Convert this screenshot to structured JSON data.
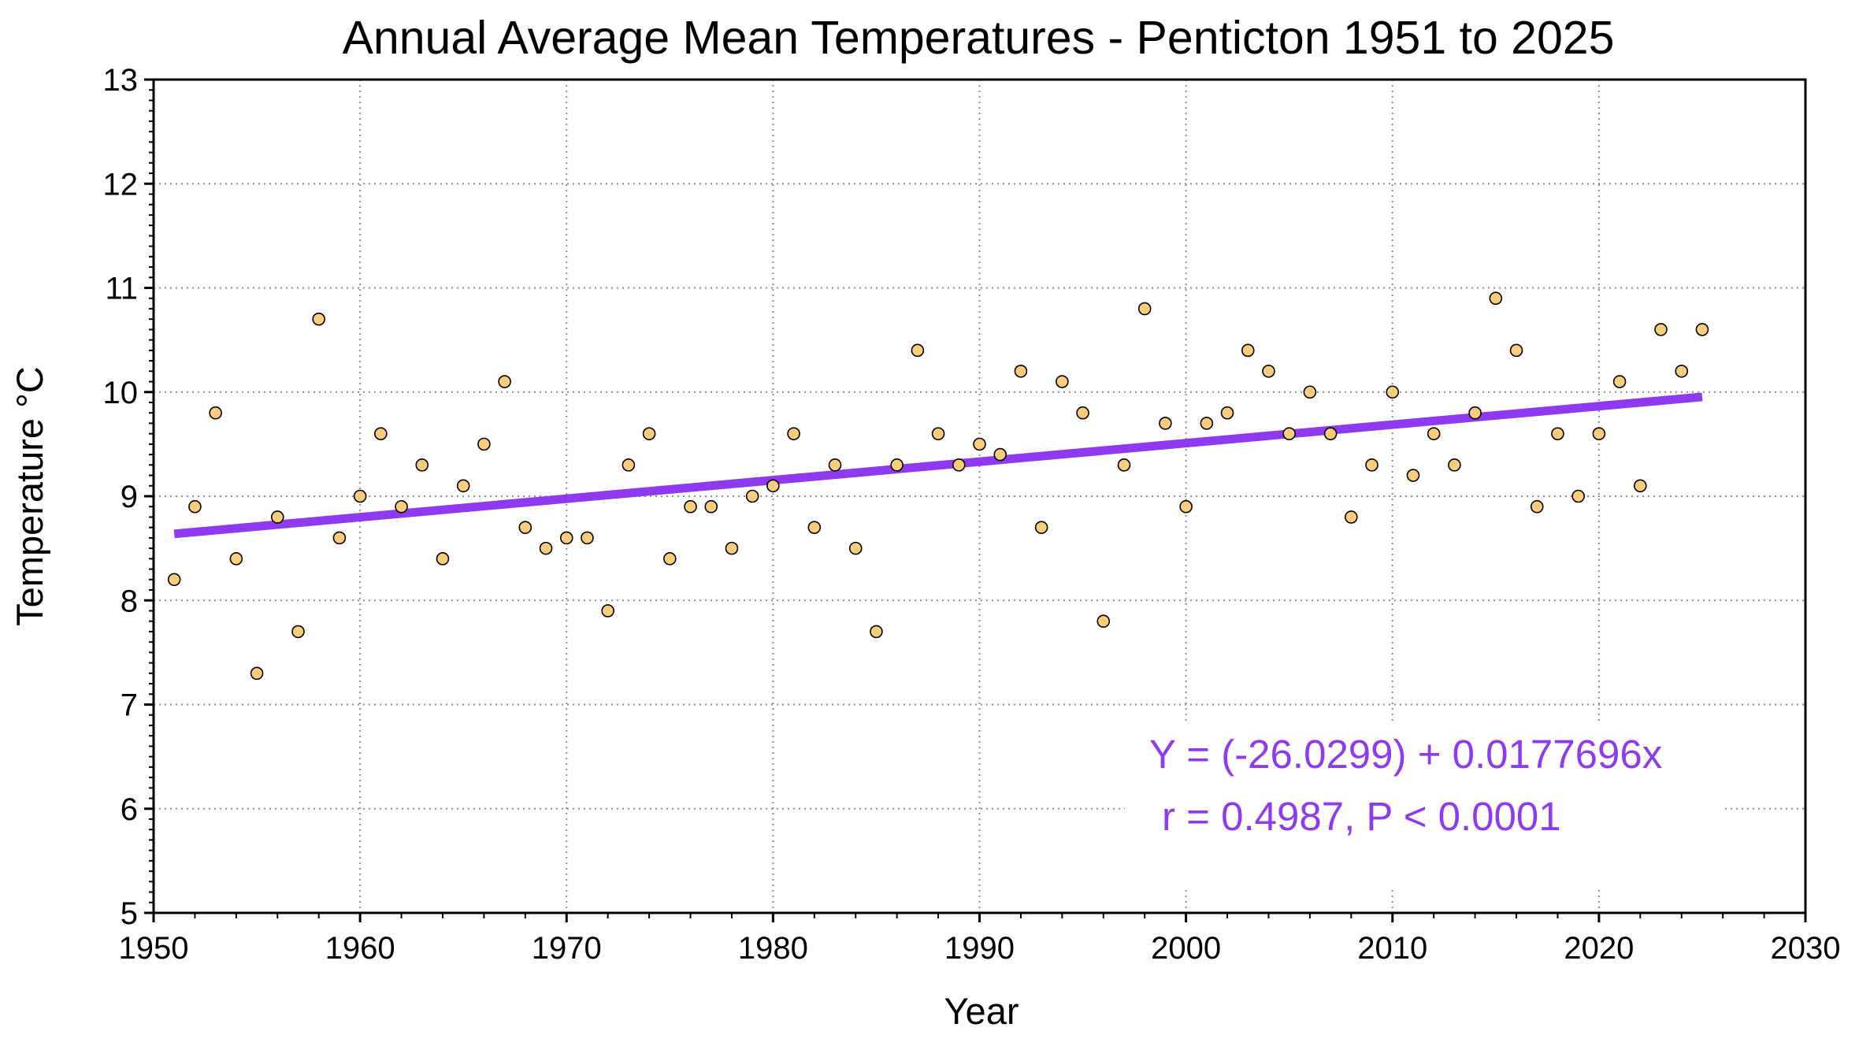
{
  "chart_data": {
    "type": "scatter",
    "title": "Annual Average Mean Temperatures - Penticton 1951 to 2025",
    "xlabel": "Year",
    "ylabel": "Temperature °C",
    "xlim": [
      1950,
      2030
    ],
    "ylim": [
      5,
      13
    ],
    "x_ticks": [
      "1950",
      "1960",
      "1970",
      "1980",
      "1990",
      "2000",
      "2010",
      "2020",
      "2030"
    ],
    "y_ticks": [
      "5",
      "6",
      "7",
      "8",
      "9",
      "10",
      "11",
      "12",
      "13"
    ],
    "grid": true,
    "series": [
      {
        "x": [
          1951,
          1952,
          1953,
          1954,
          1955,
          1956,
          1957,
          1958,
          1959,
          1960,
          1961,
          1962,
          1963,
          1964,
          1965,
          1966,
          1967,
          1968,
          1969,
          1970,
          1971,
          1972,
          1973,
          1974,
          1975,
          1976,
          1977,
          1978,
          1979,
          1980,
          1981,
          1982,
          1983,
          1984,
          1985,
          1986,
          1987,
          1988,
          1989,
          1990,
          1991,
          1992,
          1993,
          1994,
          1995,
          1996,
          1997,
          1998,
          1999,
          2000,
          2001,
          2002,
          2003,
          2004,
          2005,
          2006,
          2007,
          2008,
          2009,
          2010,
          2011,
          2012,
          2013,
          2014,
          2015,
          2016,
          2017,
          2018,
          2019,
          2020,
          2021,
          2022,
          2023,
          2024,
          2025
        ],
        "y": [
          8.2,
          8.9,
          9.8,
          8.4,
          7.3,
          8.8,
          7.7,
          10.7,
          8.6,
          9.0,
          9.6,
          8.9,
          9.3,
          8.4,
          9.1,
          9.5,
          10.1,
          8.7,
          8.5,
          8.6,
          8.6,
          7.9,
          9.3,
          9.6,
          8.4,
          8.9,
          8.9,
          8.5,
          9.0,
          9.1,
          9.6,
          8.7,
          9.3,
          8.5,
          7.7,
          9.3,
          10.4,
          9.6,
          9.3,
          9.5,
          9.4,
          10.2,
          8.7,
          10.1,
          9.8,
          7.8,
          9.3,
          10.8,
          9.7,
          8.9,
          9.7,
          9.8,
          10.4,
          10.2,
          9.6,
          10.0,
          9.6,
          8.8,
          9.3,
          10.0,
          9.2,
          9.6,
          9.3,
          9.8,
          10.9,
          10.4,
          8.9,
          9.6,
          9.0,
          9.6,
          10.1,
          9.1,
          10.6,
          10.2,
          10.6
        ],
        "marker_color": "#f9cd7c",
        "marker_edge_color": "#000000"
      }
    ],
    "trendline": {
      "intercept": -26.0299,
      "slope": 0.0177696,
      "x_range": [
        1951,
        2025
      ],
      "color": "#8e3af0"
    },
    "annotations": [
      "Y = (-26.0299) + 0.0177696x",
      "r = 0.4987, P < 0.0001"
    ],
    "annotation_color": "#8e3af0"
  }
}
